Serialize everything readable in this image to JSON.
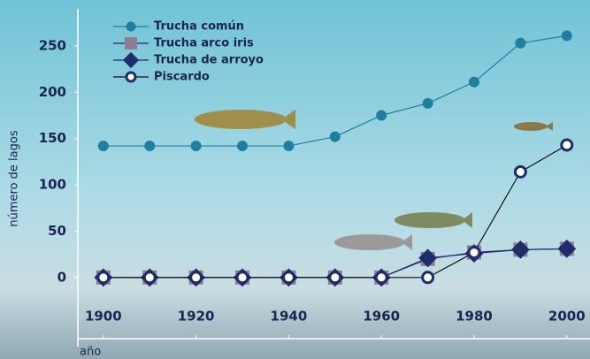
{
  "chart_data": {
    "type": "line",
    "x_label": "año",
    "y_label": "número de lagos",
    "x": [
      1900,
      1910,
      1920,
      1930,
      1940,
      1950,
      1960,
      1970,
      1980,
      1990,
      2000
    ],
    "xlim": [
      1894.5,
      2005
    ],
    "xticks": [
      1900,
      1920,
      1940,
      1960,
      1980,
      2000
    ],
    "ylim": [
      -25,
      290
    ],
    "yticks": [
      0,
      50,
      100,
      150,
      200,
      250
    ],
    "series": [
      {
        "name": "Trucha común",
        "color": "#1f7f9f",
        "marker": "circle",
        "values": [
          142,
          142,
          142,
          142,
          142,
          152,
          175,
          188,
          211,
          253,
          261
        ]
      },
      {
        "name": "Trucha arco iris",
        "color": "#8c7e93",
        "marker": "square",
        "values": [
          0,
          0,
          0,
          0,
          0,
          0,
          0,
          20,
          27,
          30,
          31
        ]
      },
      {
        "name": "Trucha de arroyo",
        "color": "#1f2d6b",
        "marker": "diamond",
        "values": [
          0,
          0,
          0,
          0,
          0,
          0,
          0,
          21,
          26,
          30,
          31
        ]
      },
      {
        "name": "Piscardo",
        "color": "#ffffff",
        "marker": "circle",
        "values": [
          0,
          0,
          0,
          0,
          0,
          0,
          0,
          0,
          27,
          114,
          143
        ]
      }
    ]
  }
}
